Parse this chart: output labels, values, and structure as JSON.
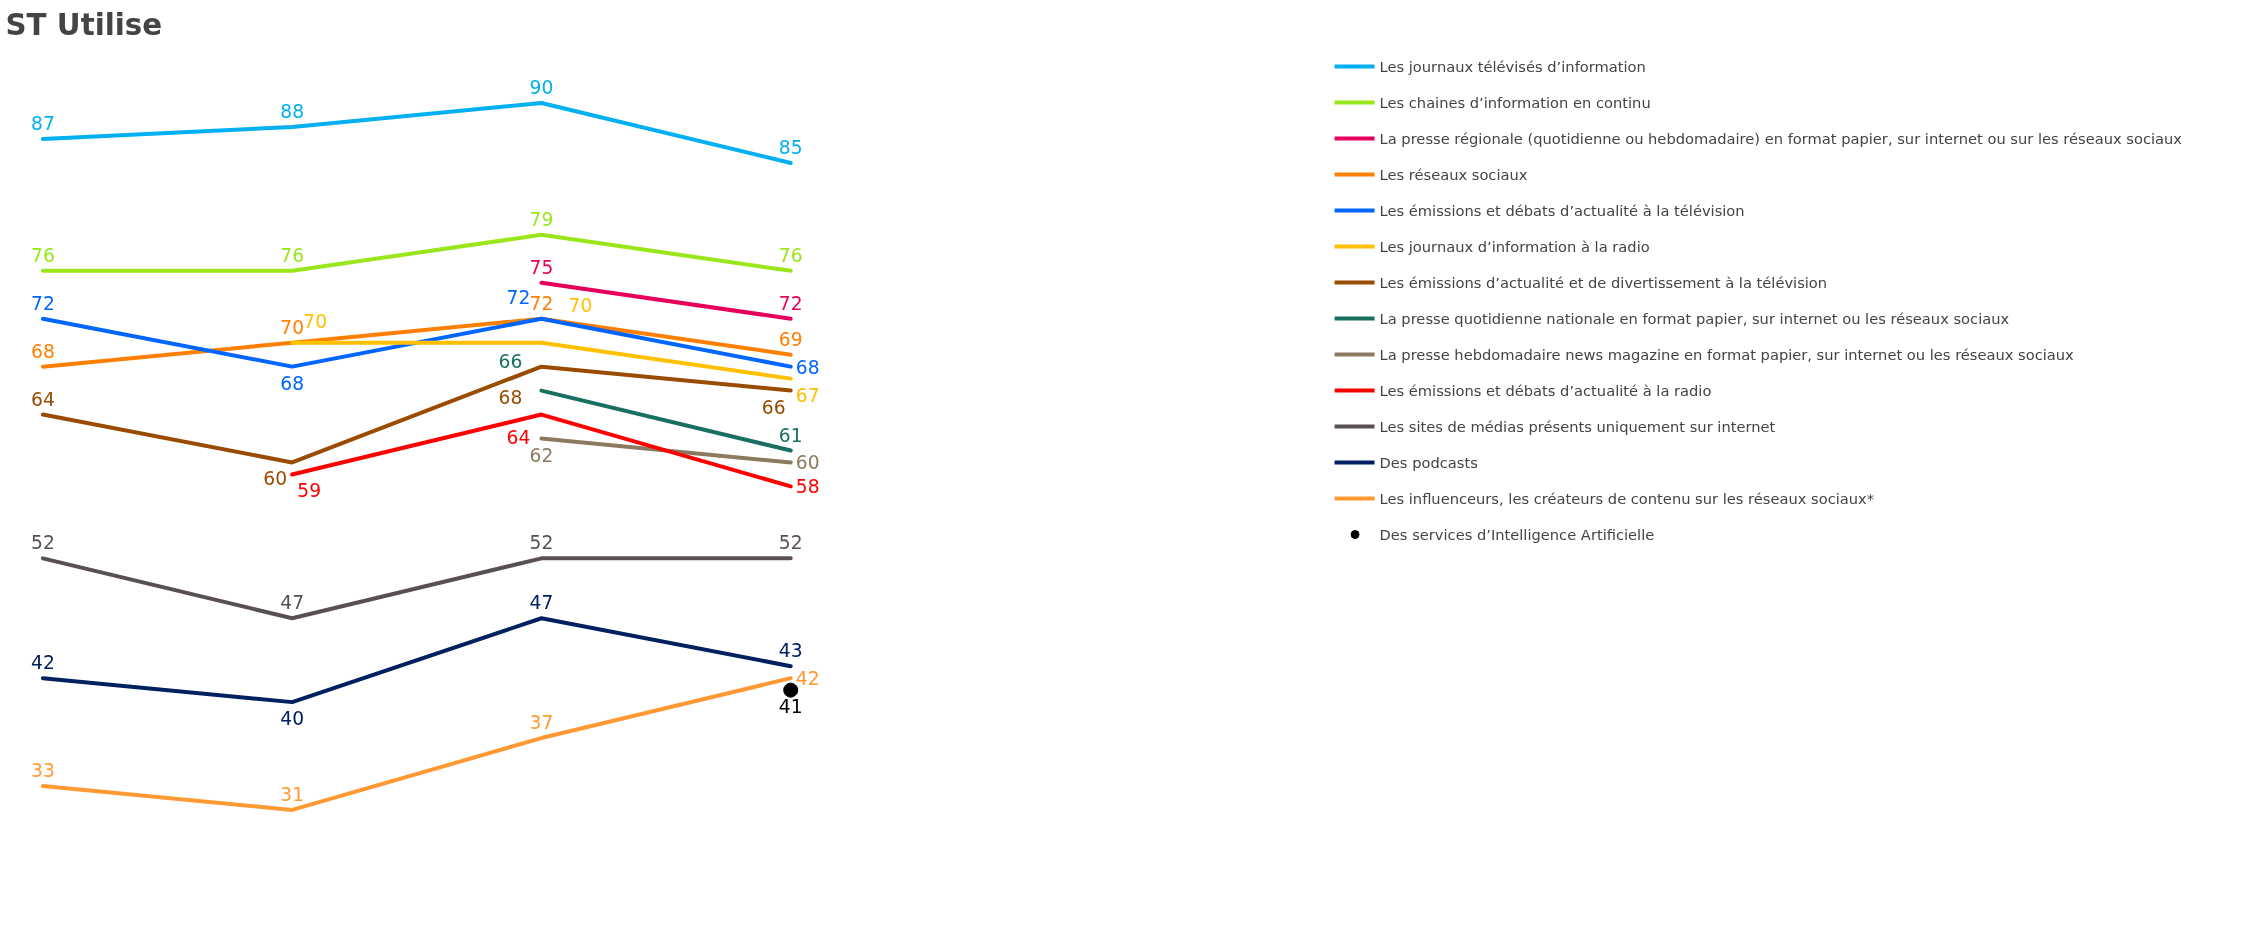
{
  "chart_data": {
    "type": "line",
    "title": "ST Utilise",
    "categories": [
      null,
      null,
      null,
      null
    ],
    "data_labels": true,
    "legend": "right",
    "grid": false,
    "tick_labels": false,
    "marker": "none",
    "line_style": "solid",
    "series": [
      {
        "name": "Les journaux télévisés d’information",
        "color": "#00b0f0",
        "values": [
          87,
          88,
          90,
          85
        ]
      },
      {
        "name": "Les chaines d’information en continu",
        "color": "#99e61a",
        "values": [
          76,
          76,
          79,
          76
        ]
      },
      {
        "name": "La presse régionale (quotidienne ou hebdomadaire) en format papier, sur internet ou sur les réseaux sociaux",
        "color": "#e6005c",
        "values": [
          null,
          null,
          75,
          72
        ]
      },
      {
        "name": "Les réseaux sociaux",
        "color": "#ff7f00",
        "values": [
          68,
          70,
          72,
          69
        ]
      },
      {
        "name": "Les émissions et débats d’actualité à la télévision",
        "color": "#0066ff",
        "values": [
          72,
          68,
          72,
          68
        ]
      },
      {
        "name": "Les journaux d’information à la radio",
        "color": "#ffc000",
        "values": [
          null,
          70,
          70,
          67
        ]
      },
      {
        "name": "Les émissions d’actualité et de divertissement à la télévision",
        "color": "#994c00",
        "values": [
          64,
          60,
          68,
          66
        ]
      },
      {
        "name": "La presse quotidienne nationale en format papier, sur internet ou les réseaux sociaux",
        "color": "#1a7060",
        "values": [
          null,
          null,
          66,
          61
        ]
      },
      {
        "name": "La presse hebdomadaire news magazine en format papier, sur internet ou les réseaux sociaux",
        "color": "#8c7a60",
        "values": [
          null,
          null,
          62,
          60
        ]
      },
      {
        "name": "Les émissions et débats d’actualité à la radio",
        "color": "#ff0000",
        "values": [
          null,
          59,
          64,
          58
        ]
      },
      {
        "name": "Les sites de médias présents uniquement sur internet",
        "color": "#5a5050",
        "values": [
          52,
          47,
          52,
          52
        ]
      },
      {
        "name": "Des podcasts",
        "color": "#002060",
        "values": [
          42,
          40,
          47,
          43
        ]
      },
      {
        "name": "Les influenceurs, les créateurs de contenu sur les réseaux sociaux*",
        "color": "#ff9933",
        "values": [
          33,
          31,
          37,
          42
        ]
      },
      {
        "name": "Des services d’Intelligence Artificielle",
        "color": "#000000",
        "values": [
          null,
          null,
          null,
          41
        ],
        "marker": "circle"
      }
    ]
  }
}
